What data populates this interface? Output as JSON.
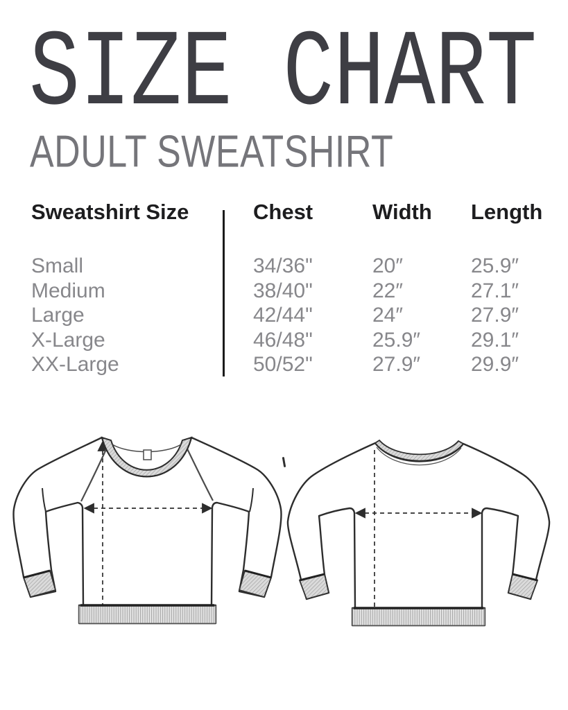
{
  "page": {
    "title": "SIZE CHART",
    "subtitle": "ADULT SWEATSHIRT"
  },
  "table": {
    "columns": [
      "Sweatshirt Size",
      "Chest",
      "Width",
      "Length"
    ],
    "rows": [
      {
        "size": "Small",
        "chest": "34/36\"",
        "width": "20″",
        "length": "25.9″"
      },
      {
        "size": "Medium",
        "chest": "38/40\"",
        "width": "22″",
        "length": "27.1″"
      },
      {
        "size": "Large",
        "chest": "42/44\"",
        "width": "24″",
        "length": "27.9″"
      },
      {
        "size": "X-Large",
        "chest": "46/48\"",
        "width": "25.9″",
        "length": "29.1″"
      },
      {
        "size": "XX-Large",
        "chest": "50/52\"",
        "width": "27.9″",
        "length": "29.9″"
      }
    ]
  },
  "chart_data": {
    "type": "table",
    "title": "SIZE CHART — ADULT SWEATSHIRT",
    "columns": [
      "Sweatshirt Size",
      "Chest",
      "Width",
      "Length"
    ],
    "rows": [
      [
        "Small",
        "34/36\"",
        "20″",
        "25.9″"
      ],
      [
        "Medium",
        "38/40\"",
        "22″",
        "27.1″"
      ],
      [
        "Large",
        "42/44\"",
        "24″",
        "27.9″"
      ],
      [
        "X-Large",
        "46/48\"",
        "25.9″",
        "29.1″"
      ],
      [
        "XX-Large",
        "50/52\"",
        "27.9″",
        "29.9″"
      ]
    ]
  },
  "diagram": {
    "front_icon": "sweatshirt-front-technical-drawing",
    "back_icon": "sweatshirt-back-technical-drawing",
    "dimension_lines": [
      "length-vertical-dashed-arrow",
      "width-horizontal-dashed-arrow"
    ]
  },
  "colors": {
    "title": "#3e3e44",
    "subtitle": "#75757a",
    "header_text": "#1d1d1f",
    "row_text": "#87878b",
    "divider": "#1b1b1b",
    "drawing_line": "#2d2d2d",
    "rib_fill": "#e2e2e2",
    "hatch_fill": "#d9d9d9"
  }
}
